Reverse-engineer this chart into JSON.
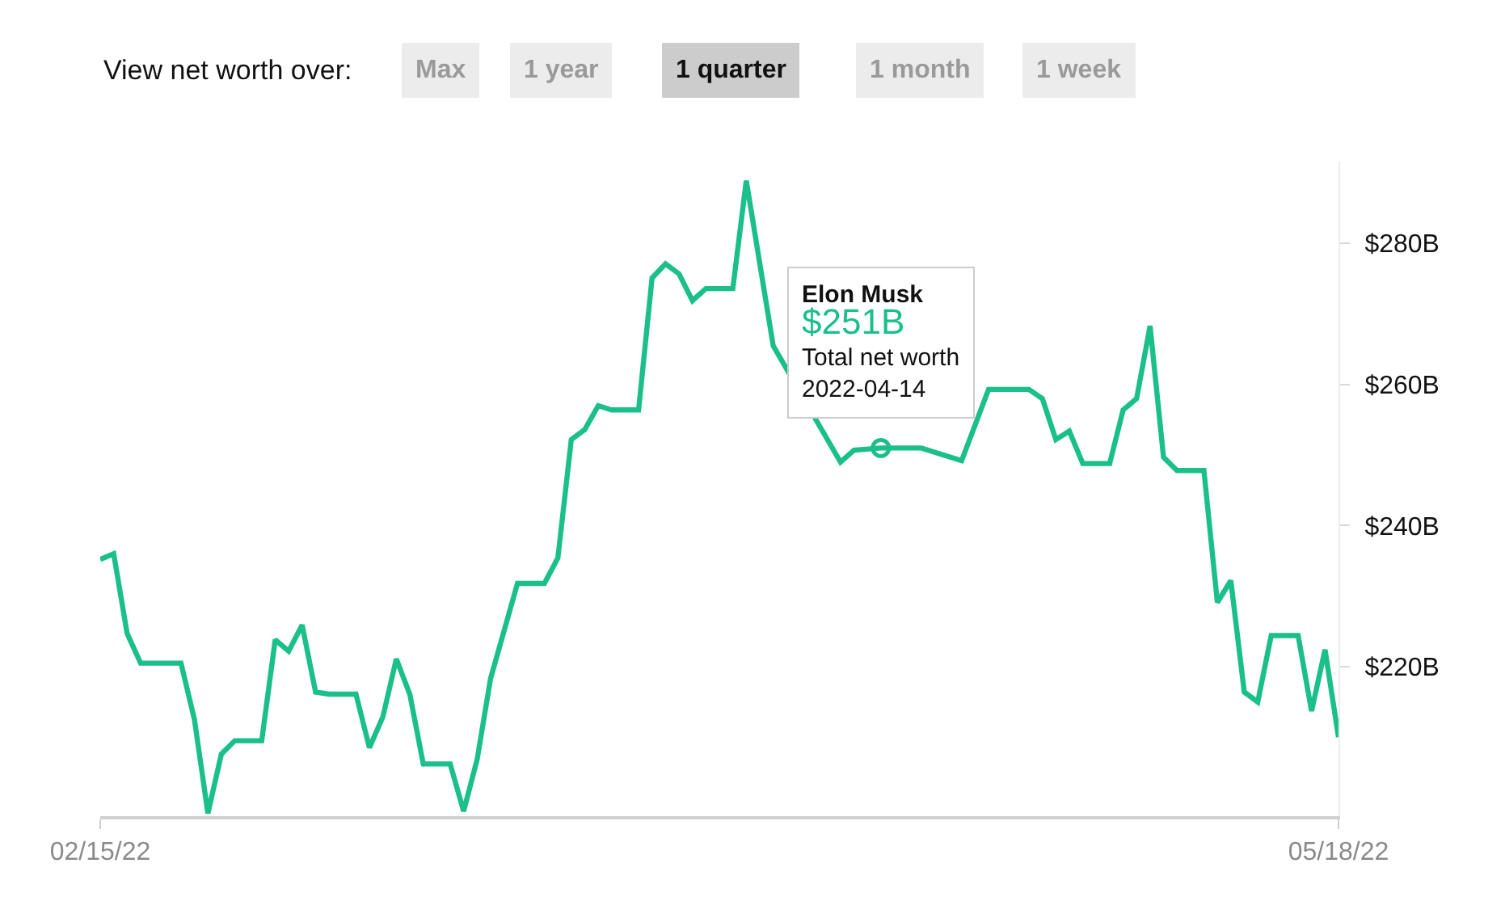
{
  "chart_data": {
    "type": "line",
    "annotations": [
      "View net worth over:",
      "Max",
      "1 year",
      "1 quarter",
      "1 month",
      "1 week",
      {
        "text": "Elon Musk\n$251B\nTotal net worth\n2022-04-14",
        "x": "2022-04-14",
        "y": 251
      }
    ],
    "series": [
      {
        "color": "#1bbf8a",
        "x": [
          "2022-02-15",
          "2022-02-16",
          "2022-02-17",
          "2022-02-18",
          "2022-02-21",
          "2022-02-22",
          "2022-02-23",
          "2022-02-24",
          "2022-02-25",
          "2022-02-27",
          "2022-02-28",
          "2022-03-01",
          "2022-03-02",
          "2022-03-03",
          "2022-03-04",
          "2022-03-06",
          "2022-03-07",
          "2022-03-08",
          "2022-03-09",
          "2022-03-10",
          "2022-03-11",
          "2022-03-13",
          "2022-03-14",
          "2022-03-15",
          "2022-03-16",
          "2022-03-18",
          "2022-03-20",
          "2022-03-21",
          "2022-03-22",
          "2022-03-23",
          "2022-03-24",
          "2022-03-25",
          "2022-03-27",
          "2022-03-28",
          "2022-03-29",
          "2022-03-30",
          "2022-03-31",
          "2022-04-01",
          "2022-04-03",
          "2022-04-04",
          "2022-04-06",
          "2022-04-11",
          "2022-04-12",
          "2022-04-14",
          "2022-04-17",
          "2022-04-20",
          "2022-04-22",
          "2022-04-25",
          "2022-04-26",
          "2022-04-27",
          "2022-04-28",
          "2022-04-29",
          "2022-05-01",
          "2022-05-02",
          "2022-05-03",
          "2022-05-04",
          "2022-05-05",
          "2022-05-06",
          "2022-05-08",
          "2022-05-09",
          "2022-05-10",
          "2022-05-11",
          "2022-05-12",
          "2022-05-13",
          "2022-05-15",
          "2022-05-16",
          "2022-05-17",
          "2022-05-18"
        ],
        "values": [
          235.2,
          236.0,
          224.7,
          220.5,
          220.5,
          212.5,
          199.2,
          207.6,
          209.5,
          209.5,
          223.8,
          222.2,
          225.9,
          216.4,
          216.1,
          216.1,
          208.5,
          212.9,
          221.1,
          216.1,
          206.2,
          206.2,
          199.5,
          206.8,
          218.3,
          231.8,
          231.8,
          235.4,
          252.2,
          253.6,
          257.0,
          256.4,
          256.4,
          275.1,
          277.1,
          275.7,
          271.9,
          273.6,
          273.6,
          288.9,
          265.5,
          249.0,
          250.7,
          251.0,
          251.0,
          249.2,
          259.3,
          259.3,
          258.0,
          252.2,
          253.4,
          248.8,
          248.8,
          256.4,
          258.0,
          268.3,
          249.7,
          247.8,
          247.8,
          229.1,
          232.2,
          216.4,
          215.0,
          224.4,
          224.4,
          213.7,
          222.4,
          210.0
        ]
      }
    ],
    "xlim": [
      "2022-02-15",
      "2022-05-18"
    ],
    "xticks": [
      {
        "value": "2022-02-15",
        "label": "02/15/22"
      },
      {
        "value": "2022-05-18",
        "label": "05/18/22"
      }
    ],
    "ylim": [
      198.8,
      291.6
    ],
    "yticks": [
      {
        "value": 220,
        "label": "$220B"
      },
      {
        "value": 240,
        "label": "$240B"
      },
      {
        "value": 260,
        "label": "$260B"
      },
      {
        "value": 280,
        "label": "$280B"
      }
    ],
    "grid": false,
    "marker": "none",
    "line_style": "solid"
  }
}
